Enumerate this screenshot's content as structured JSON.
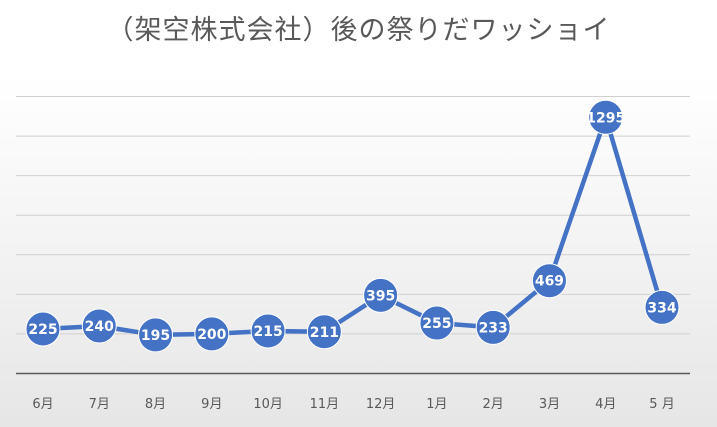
{
  "chart_data": {
    "type": "line",
    "title": "（架空株式会社）後の祭りだワッショイ",
    "categories": [
      "6月",
      "7月",
      "8月",
      "9月",
      "10月",
      "11月",
      "12月",
      "1月",
      "2月",
      "3月",
      "4月",
      "5 月"
    ],
    "series": [
      {
        "values": [
          225,
          240,
          195,
          200,
          215,
          211,
          395,
          255,
          233,
          469,
          1295,
          334
        ]
      }
    ],
    "ylim": [
      0,
      1400
    ],
    "y_ticks_labeled": false,
    "grid": true,
    "legend": "none",
    "data_labels": true,
    "colors": {
      "line": "#4472C4",
      "marker": "#4472C4",
      "marker_border": "#ffffff",
      "grid": "#d0d0d0",
      "axis": "#595959",
      "tick_label": "#595959",
      "data_label": "#ffffff"
    }
  }
}
